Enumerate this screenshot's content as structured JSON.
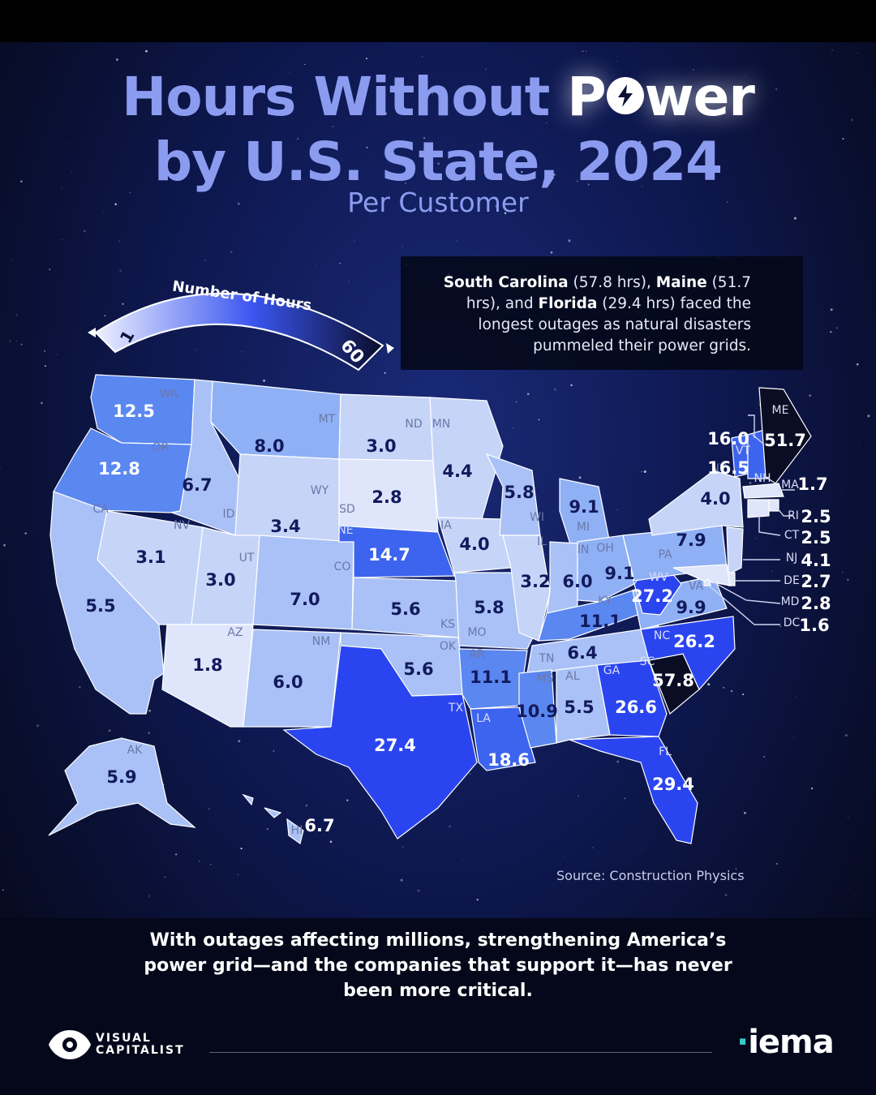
{
  "title": {
    "line1_a": "Hours Without ",
    "line1_b": "P",
    "line1_c": "wer",
    "line2": "by U.S. State, 2024"
  },
  "subtitle": "Per Customer",
  "legend": {
    "label": "Number of Hours",
    "min": "1",
    "max": "60",
    "color_min": "#e4e9ff",
    "color_max": "#0e1130"
  },
  "callout": {
    "sc_name": "South Carolina",
    "sc_val": " (57.8 hrs), ",
    "me_name": "Maine",
    "me_val": " (51.7 hrs), and ",
    "fl_name": "Florida",
    "fl_val": " (29.4 hrs) faced the longest outages as natural disasters pummeled their power grids."
  },
  "source": "Source: Construction Physics",
  "footer": "With outages affecting millions, strengthening America’s power grid—and the companies that support it—has never been more critical.",
  "brand": {
    "vc_line1": "VISUAL",
    "vc_line2": "CAPITALIST",
    "partner": "iema"
  },
  "chart_data": {
    "type": "choropleth",
    "unit": "hours without power per customer",
    "states": [
      {
        "abbr": "WA",
        "value": 12.5
      },
      {
        "abbr": "OR",
        "value": 12.8
      },
      {
        "abbr": "CA",
        "value": 5.5
      },
      {
        "abbr": "ID",
        "value": 6.7
      },
      {
        "abbr": "NV",
        "value": 3.1
      },
      {
        "abbr": "MT",
        "value": 8.0
      },
      {
        "abbr": "WY",
        "value": 3.4
      },
      {
        "abbr": "UT",
        "value": 3.0
      },
      {
        "abbr": "AZ",
        "value": 1.8
      },
      {
        "abbr": "CO",
        "value": 7.0
      },
      {
        "abbr": "NM",
        "value": 6.0
      },
      {
        "abbr": "ND",
        "value": 3.0
      },
      {
        "abbr": "SD",
        "value": 2.8
      },
      {
        "abbr": "NE",
        "value": 14.7
      },
      {
        "abbr": "KS",
        "value": 5.6
      },
      {
        "abbr": "OK",
        "value": 5.6
      },
      {
        "abbr": "TX",
        "value": 27.4
      },
      {
        "abbr": "MN",
        "value": 4.4
      },
      {
        "abbr": "IA",
        "value": 4.0
      },
      {
        "abbr": "MO",
        "value": 5.8
      },
      {
        "abbr": "AR",
        "value": 11.1
      },
      {
        "abbr": "LA",
        "value": 18.6
      },
      {
        "abbr": "WI",
        "value": 5.8
      },
      {
        "abbr": "IL",
        "value": 3.2
      },
      {
        "abbr": "MI",
        "value": 9.1
      },
      {
        "abbr": "IN",
        "value": 6.0
      },
      {
        "abbr": "OH",
        "value": 9.1
      },
      {
        "abbr": "KY",
        "value": 11.1
      },
      {
        "abbr": "TN",
        "value": 6.4
      },
      {
        "abbr": "MS",
        "value": 10.9
      },
      {
        "abbr": "AL",
        "value": 5.5
      },
      {
        "abbr": "GA",
        "value": 26.6
      },
      {
        "abbr": "FL",
        "value": 29.4
      },
      {
        "abbr": "SC",
        "value": 57.8
      },
      {
        "abbr": "NC",
        "value": 26.2
      },
      {
        "abbr": "VA",
        "value": 9.9
      },
      {
        "abbr": "WV",
        "value": 27.2
      },
      {
        "abbr": "PA",
        "value": 7.9
      },
      {
        "abbr": "NY",
        "value": 4.0
      },
      {
        "abbr": "VT",
        "value": 16.0
      },
      {
        "abbr": "NH",
        "value": 16.5
      },
      {
        "abbr": "ME",
        "value": 51.7
      },
      {
        "abbr": "MA",
        "value": 1.7
      },
      {
        "abbr": "RI",
        "value": 2.5
      },
      {
        "abbr": "CT",
        "value": 2.5
      },
      {
        "abbr": "NJ",
        "value": 4.1
      },
      {
        "abbr": "DE",
        "value": 2.7
      },
      {
        "abbr": "MD",
        "value": 2.8
      },
      {
        "abbr": "DC",
        "value": 1.6
      },
      {
        "abbr": "AK",
        "value": 5.9
      },
      {
        "abbr": "HI",
        "value": 6.7
      }
    ]
  }
}
